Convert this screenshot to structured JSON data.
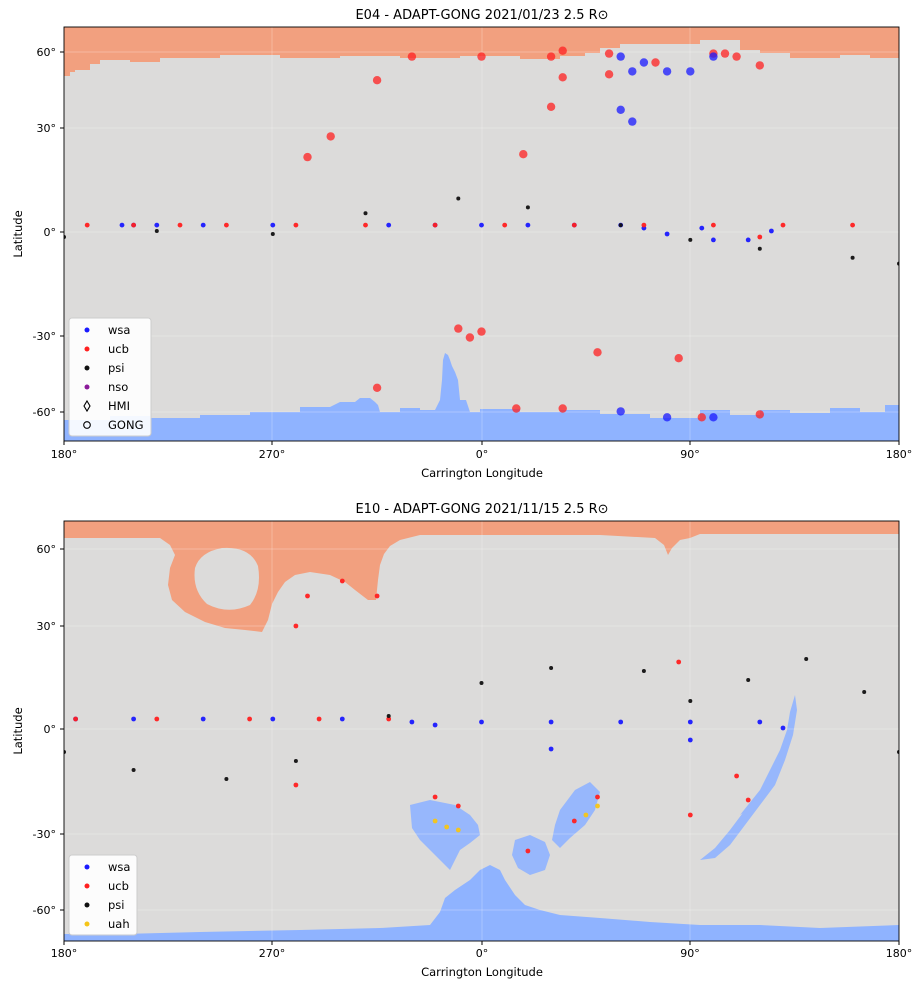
{
  "chart_data": [
    {
      "type": "scatter",
      "title": "E04 - ADAPT-GONG 2021/01/23 2.5 R⊙",
      "xlabel": "Carrington Longitude",
      "ylabel": "Latitude",
      "xlim": [
        180,
        -180
      ],
      "ylim": [
        -70,
        70
      ],
      "xticks": [
        "180°",
        "270°",
        "0°",
        "90°",
        "180°"
      ],
      "yticks": [
        "60°",
        "30°",
        "0°",
        "-30°",
        "-60°"
      ],
      "legend_position": "lower-left",
      "legend": [
        {
          "label": "wsa",
          "marker": "dot",
          "color": "#1a1aff"
        },
        {
          "label": "ucb",
          "marker": "dot",
          "color": "#ff2020"
        },
        {
          "label": "psi",
          "marker": "dot",
          "color": "#111111"
        },
        {
          "label": "nso",
          "marker": "dot",
          "color": "#8b1a9a"
        },
        {
          "label": "HMI",
          "marker": "diamond-open",
          "color": "#000000"
        },
        {
          "label": "GONG",
          "marker": "circle-open",
          "color": "#000000"
        }
      ],
      "colors": {
        "positive_hole": "#f2a07f",
        "negative_hole": "#8fb3ff",
        "background": "#dcdbda"
      },
      "series": [
        {
          "name": "wsa",
          "color": "#1a1aff",
          "points": [
            [
              -155,
              3
            ],
            [
              -150,
              3
            ],
            [
              -140,
              3
            ],
            [
              -120,
              3
            ],
            [
              -90,
              3
            ],
            [
              -40,
              3
            ],
            [
              -20,
              3
            ],
            [
              0,
              3
            ],
            [
              20,
              3
            ],
            [
              40,
              3
            ],
            [
              60,
              3
            ],
            [
              70,
              2
            ],
            [
              80,
              0
            ],
            [
              100,
              -2
            ],
            [
              115,
              -2
            ],
            [
              125,
              1
            ],
            [
              95,
              2
            ]
          ]
        },
        {
          "name": "ucb",
          "color": "#ff2020",
          "points": [
            [
              -170,
              3
            ],
            [
              -150,
              3
            ],
            [
              -130,
              3
            ],
            [
              -110,
              3
            ],
            [
              -80,
              3
            ],
            [
              -50,
              3
            ],
            [
              -20,
              3
            ],
            [
              10,
              3
            ],
            [
              40,
              3
            ],
            [
              70,
              3
            ],
            [
              100,
              3
            ],
            [
              130,
              3
            ],
            [
              160,
              3
            ],
            [
              120,
              -1
            ]
          ]
        },
        {
          "name": "psi",
          "color": "#111111",
          "points": [
            [
              -180,
              -1
            ],
            [
              -140,
              1
            ],
            [
              -90,
              0
            ],
            [
              -50,
              7
            ],
            [
              -10,
              12
            ],
            [
              20,
              9
            ],
            [
              60,
              3
            ],
            [
              90,
              -2
            ],
            [
              120,
              -5
            ],
            [
              160,
              -8
            ],
            [
              180,
              -10
            ]
          ]
        },
        {
          "name": "ucb (GONG)",
          "color": "#ff2020",
          "points": [
            [
              -45,
              -52
            ],
            [
              -10,
              -32
            ],
            [
              -5,
              -35
            ],
            [
              0,
              -33
            ],
            [
              15,
              -59
            ],
            [
              35,
              -59
            ],
            [
              50,
              -40
            ],
            [
              85,
              -42
            ],
            [
              95,
              -62
            ],
            [
              120,
              57
            ],
            [
              110,
              60
            ],
            [
              30,
              60
            ],
            [
              35,
              62
            ],
            [
              55,
              61
            ],
            [
              100,
              61
            ]
          ]
        },
        {
          "name": "ucb (HMI)",
          "color": "#ff2020",
          "points": [
            [
              -75,
              26
            ],
            [
              -65,
              33
            ],
            [
              -45,
              52
            ],
            [
              -30,
              60
            ],
            [
              0,
              60
            ],
            [
              18,
              27
            ],
            [
              30,
              43
            ],
            [
              35,
              53
            ],
            [
              55,
              54
            ],
            [
              75,
              58
            ],
            [
              105,
              61
            ],
            [
              120,
              -61
            ]
          ]
        },
        {
          "name": "wsa (HMI)",
          "color": "#1a1aff",
          "points": [
            [
              60,
              60
            ],
            [
              65,
              55
            ],
            [
              70,
              58
            ],
            [
              80,
              55
            ],
            [
              90,
              55
            ],
            [
              100,
              60
            ],
            [
              65,
              38
            ],
            [
              60,
              42
            ],
            [
              60,
              -60
            ],
            [
              80,
              -62
            ],
            [
              100,
              -62
            ]
          ]
        }
      ]
    },
    {
      "type": "scatter",
      "title": "E10 - ADAPT-GONG 2021/11/15 2.5 R⊙",
      "xlabel": "Carrington Longitude",
      "ylabel": "Latitude",
      "xlim": [
        180,
        -180
      ],
      "ylim": [
        -70,
        70
      ],
      "xticks": [
        "180°",
        "270°",
        "0°",
        "90°",
        "180°"
      ],
      "yticks": [
        "60°",
        "30°",
        "0°",
        "-30°",
        "-60°"
      ],
      "legend_position": "lower-left",
      "legend": [
        {
          "label": "wsa",
          "marker": "dot",
          "color": "#1a1aff"
        },
        {
          "label": "ucb",
          "marker": "dot",
          "color": "#ff2020"
        },
        {
          "label": "psi",
          "marker": "dot",
          "color": "#111111"
        },
        {
          "label": "uah",
          "marker": "dot",
          "color": "#f5c518"
        }
      ],
      "colors": {
        "positive_hole": "#f2a07f",
        "negative_hole": "#8fb3ff",
        "background": "#dcdbda"
      },
      "series": [
        {
          "name": "wsa",
          "color": "#1a1aff",
          "points": [
            [
              -175,
              4
            ],
            [
              -150,
              4
            ],
            [
              -120,
              4
            ],
            [
              -90,
              4
            ],
            [
              -60,
              4
            ],
            [
              -30,
              3
            ],
            [
              0,
              3
            ],
            [
              30,
              3
            ],
            [
              60,
              3
            ],
            [
              90,
              3
            ],
            [
              120,
              3
            ],
            [
              130,
              1
            ],
            [
              90,
              -3
            ],
            [
              30,
              -6
            ],
            [
              -20,
              2
            ]
          ]
        },
        {
          "name": "ucb",
          "color": "#ff2020",
          "points": [
            [
              -175,
              4
            ],
            [
              -140,
              4
            ],
            [
              -100,
              4
            ],
            [
              -70,
              4
            ],
            [
              -40,
              4
            ],
            [
              -20,
              -22
            ],
            [
              -10,
              -25
            ],
            [
              20,
              -40
            ],
            [
              40,
              -30
            ],
            [
              50,
              -22
            ],
            [
              110,
              -15
            ],
            [
              115,
              -23
            ],
            [
              -80,
              -18
            ],
            [
              -75,
              45
            ],
            [
              -80,
              35
            ],
            [
              -60,
              50
            ],
            [
              -45,
              45
            ],
            [
              85,
              23
            ],
            [
              90,
              -28
            ]
          ]
        },
        {
          "name": "psi",
          "color": "#111111",
          "points": [
            [
              -180,
              -7
            ],
            [
              -150,
              -13
            ],
            [
              -110,
              -16
            ],
            [
              -80,
              -10
            ],
            [
              -40,
              5
            ],
            [
              0,
              16
            ],
            [
              30,
              21
            ],
            [
              70,
              20
            ],
            [
              90,
              10
            ],
            [
              115,
              17
            ],
            [
              140,
              24
            ],
            [
              165,
              13
            ],
            [
              180,
              -7
            ]
          ]
        },
        {
          "name": "uah",
          "color": "#f5c518",
          "points": [
            [
              -20,
              -30
            ],
            [
              -15,
              -32
            ],
            [
              -10,
              -33
            ],
            [
              45,
              -28
            ],
            [
              50,
              -25
            ]
          ]
        }
      ]
    }
  ]
}
